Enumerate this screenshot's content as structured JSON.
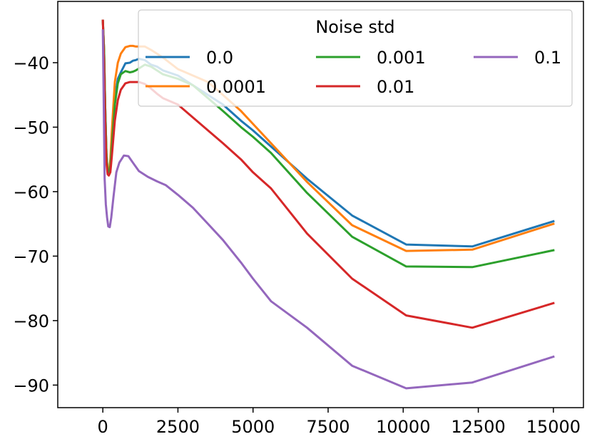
{
  "chart_data": {
    "type": "line",
    "title": "",
    "xlabel": "",
    "ylabel": "",
    "xlim": [
      -1500,
      16000
    ],
    "ylim": [
      -93.5,
      -30.5
    ],
    "xticks": [
      0,
      2500,
      5000,
      7500,
      10000,
      12500,
      15000
    ],
    "yticks": [
      -90,
      -80,
      -70,
      -60,
      -50,
      -40
    ],
    "grid": false,
    "legend": {
      "title": "Noise std",
      "placement": "top-right",
      "columns": 3
    },
    "series": [
      {
        "name": "0.0",
        "color": "#1f77b4",
        "x": [
          0,
          40,
          80,
          120,
          160,
          200,
          250,
          300,
          400,
          500,
          600,
          750,
          900,
          1000,
          1100,
          1200,
          1400,
          1600,
          1800,
          2000,
          2500,
          3000,
          3500,
          4000,
          4600,
          5000,
          5600,
          6800,
          8300,
          10100,
          12300,
          15000
        ],
        "y": [
          -33.5,
          -38,
          -47,
          -54,
          -57,
          -57.2,
          -56,
          -52,
          -45.5,
          -42.5,
          -41.5,
          -40.1,
          -40,
          -39.7,
          -39.6,
          -39.4,
          -39.6,
          -40.3,
          -40.6,
          -41.2,
          -42,
          -43.5,
          -45,
          -46.5,
          -49,
          -50.5,
          -53,
          -58,
          -63.7,
          -68.2,
          -68.5,
          -64.6
        ]
      },
      {
        "name": "0.0001",
        "color": "#ff7f0e",
        "x": [
          0,
          40,
          80,
          120,
          160,
          200,
          250,
          300,
          400,
          500,
          600,
          750,
          900,
          1000,
          1100,
          1200,
          1400,
          1600,
          1800,
          2000,
          2500,
          3000,
          3500,
          4000,
          4600,
          5000,
          5600,
          6800,
          8300,
          10100,
          12300,
          15000
        ],
        "y": [
          -33.5,
          -38,
          -47,
          -54,
          -57,
          -57.2,
          -55,
          -50.5,
          -43,
          -40,
          -38.6,
          -37.6,
          -37.4,
          -37.4,
          -37.5,
          -37.5,
          -37.5,
          -38,
          -38.6,
          -39.2,
          -41,
          -42,
          -43,
          -45,
          -47.5,
          -49.5,
          -52.5,
          -58.5,
          -65.2,
          -69.2,
          -69,
          -65
        ]
      },
      {
        "name": "0.001",
        "color": "#2ca02c",
        "x": [
          0,
          40,
          80,
          120,
          160,
          200,
          250,
          300,
          400,
          500,
          600,
          750,
          900,
          1000,
          1100,
          1200,
          1400,
          1600,
          1800,
          2000,
          2500,
          3000,
          3500,
          4000,
          4600,
          5000,
          5600,
          6800,
          8300,
          10100,
          12300,
          15000
        ],
        "y": [
          -33.5,
          -38,
          -47,
          -54,
          -57,
          -57.2,
          -56,
          -53,
          -46.5,
          -43.2,
          -41.8,
          -41.3,
          -41.5,
          -41.4,
          -41.2,
          -40.9,
          -40.3,
          -40.6,
          -41.2,
          -41.8,
          -42.5,
          -43.5,
          -45.5,
          -47.5,
          -50,
          -51.5,
          -54,
          -60.2,
          -67,
          -71.6,
          -71.7,
          -69.1
        ]
      },
      {
        "name": "0.01",
        "color": "#d62728",
        "x": [
          0,
          40,
          80,
          120,
          160,
          200,
          250,
          300,
          400,
          500,
          600,
          750,
          900,
          1000,
          1100,
          1200,
          1400,
          1600,
          1800,
          2000,
          2500,
          3000,
          3500,
          4000,
          4600,
          5000,
          5600,
          6800,
          8300,
          10100,
          12300,
          15000
        ],
        "y": [
          -33.5,
          -40,
          -49,
          -55.5,
          -57.3,
          -57.5,
          -57,
          -54.5,
          -49,
          -45.8,
          -44.2,
          -43.2,
          -43,
          -43,
          -43,
          -43,
          -43.3,
          -44,
          -44.8,
          -45.5,
          -46.5,
          -48.5,
          -50.5,
          -52.5,
          -55,
          -57,
          -59.5,
          -66.5,
          -73.5,
          -79.2,
          -81.1,
          -77.3
        ]
      },
      {
        "name": "0.1",
        "color": "#9467bd",
        "x": [
          0,
          30,
          60,
          100,
          140,
          180,
          230,
          280,
          350,
          450,
          550,
          700,
          850,
          1000,
          1200,
          1500,
          1800,
          2100,
          2500,
          3000,
          3500,
          4000,
          4600,
          5000,
          5600,
          6800,
          8300,
          10100,
          12300,
          15000
        ],
        "y": [
          -35,
          -46,
          -58,
          -62,
          -64,
          -65.4,
          -65.5,
          -64,
          -61,
          -57,
          -55.5,
          -54.4,
          -54.5,
          -55.5,
          -56.8,
          -57.7,
          -58.4,
          -59,
          -60.5,
          -62.5,
          -65,
          -67.5,
          -71,
          -73.5,
          -77,
          -81.1,
          -87,
          -90.5,
          -89.6,
          -85.6
        ]
      }
    ]
  }
}
